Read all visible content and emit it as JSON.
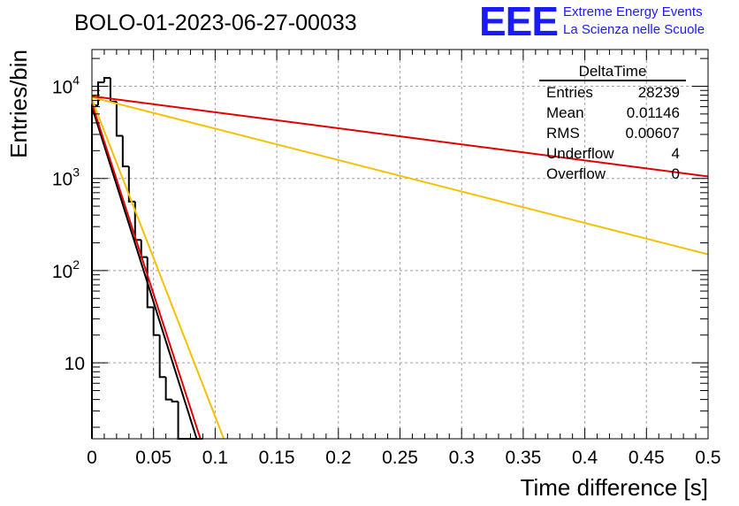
{
  "header": {
    "run_title": "BOLO-01-2023-06-27-00033",
    "logo_text": "EEE",
    "project_line1": "Extreme Energy Events",
    "project_line2": "La Scienza nelle Scuole"
  },
  "colors": {
    "logo": "#1a1aff",
    "project_text": "#1a1aff",
    "histogram": "#000000",
    "fit_black": "#000000",
    "fit_red": "#e00000",
    "fit_orange": "#f5c000",
    "grid": "#a0a0a0"
  },
  "stats_box": {
    "title": "DeltaTime",
    "rows": [
      {
        "label": "Entries",
        "value": "28239"
      },
      {
        "label": "Mean",
        "value": "0.01146"
      },
      {
        "label": "RMS",
        "value": "0.00607"
      },
      {
        "label": "Underflow",
        "value": "4"
      },
      {
        "label": "Overflow",
        "value": "0"
      }
    ]
  },
  "chart_data": {
    "type": "line",
    "xlabel": "Time difference [s]",
    "ylabel": "Entries/bin",
    "xlim": [
      0,
      0.5
    ],
    "ylim": [
      1.5,
      25000
    ],
    "y_scale": "log",
    "grid": true,
    "x_ticks": [
      {
        "v": 0,
        "label": "0"
      },
      {
        "v": 0.05,
        "label": "0.05"
      },
      {
        "v": 0.1,
        "label": "0.1"
      },
      {
        "v": 0.15,
        "label": "0.15"
      },
      {
        "v": 0.2,
        "label": "0.2"
      },
      {
        "v": 0.25,
        "label": "0.25"
      },
      {
        "v": 0.3,
        "label": "0.3"
      },
      {
        "v": 0.35,
        "label": "0.35"
      },
      {
        "v": 0.4,
        "label": "0.4"
      },
      {
        "v": 0.45,
        "label": "0.45"
      },
      {
        "v": 0.5,
        "label": "0.5"
      }
    ],
    "y_ticks": [
      {
        "v": 10,
        "base": "10",
        "exp": ""
      },
      {
        "v": 100,
        "base": "10",
        "exp": "2"
      },
      {
        "v": 1000,
        "base": "10",
        "exp": "3"
      },
      {
        "v": 10000,
        "base": "10",
        "exp": "4"
      }
    ],
    "histogram": {
      "bin_width": 0.005,
      "x_start": 0,
      "counts": [
        6200,
        11000,
        12300,
        6800,
        2900,
        1350,
        560,
        215,
        140,
        40,
        20,
        7,
        4,
        3.8,
        1.5,
        1.5,
        1.5,
        1.5
      ]
    },
    "fits": [
      {
        "color": "#000000",
        "points": [
          [
            0,
            6000
          ],
          [
            0.085,
            1.5
          ]
        ]
      },
      {
        "color": "#e00000",
        "points": [
          [
            0,
            6500
          ],
          [
            0.088,
            1.5
          ]
        ]
      },
      {
        "color": "#f5c000",
        "points": [
          [
            0,
            7200
          ],
          [
            0.107,
            1.5
          ]
        ]
      },
      {
        "color": "#f5c000",
        "points": [
          [
            0,
            7600
          ],
          [
            0.5,
            150
          ]
        ]
      },
      {
        "color": "#e00000",
        "points": [
          [
            0,
            7800
          ],
          [
            0.5,
            1050
          ]
        ]
      }
    ]
  }
}
